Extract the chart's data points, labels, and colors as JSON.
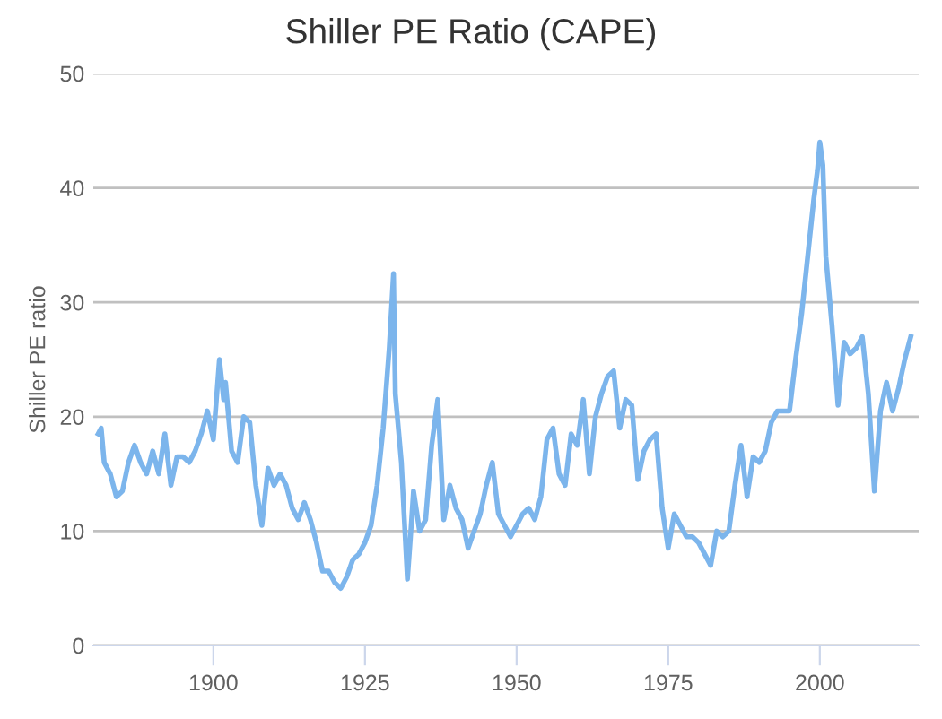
{
  "chart_data": {
    "type": "line",
    "title": "Shiller PE Ratio (CAPE)",
    "ylabel": "Shiller PE ratio",
    "xlim": [
      1880.2,
      2016.3
    ],
    "xticks": [
      1900,
      1925,
      1950,
      1975,
      2000
    ],
    "ylim": [
      0,
      50
    ],
    "yticks": [
      0,
      10,
      20,
      30,
      40,
      50
    ],
    "grid": "y",
    "marker": "none",
    "line_style": "solid",
    "series": [
      {
        "color": "#7cb5ec",
        "x": [
          1881,
          1881.5,
          1882,
          1883,
          1884,
          1885,
          1886,
          1887,
          1888,
          1889,
          1890,
          1891,
          1892,
          1893,
          1894,
          1895,
          1896,
          1897,
          1898,
          1899,
          1900,
          1901,
          1901.7,
          1902,
          1903,
          1904,
          1905,
          1906,
          1907,
          1908,
          1909,
          1910,
          1911,
          1912,
          1913,
          1914,
          1915,
          1916,
          1917,
          1918,
          1919,
          1920,
          1921,
          1922,
          1923,
          1924,
          1925,
          1926,
          1927,
          1928,
          1929,
          1929.7,
          1930,
          1931,
          1932,
          1932.5,
          1933,
          1934,
          1935,
          1936,
          1937,
          1938,
          1939,
          1940,
          1941,
          1942,
          1943,
          1944,
          1945,
          1946,
          1947,
          1948,
          1949,
          1950,
          1951,
          1952,
          1953,
          1954,
          1955,
          1956,
          1957,
          1958,
          1959,
          1960,
          1961,
          1962,
          1963,
          1964,
          1965,
          1966,
          1967,
          1968,
          1969,
          1970,
          1971,
          1972,
          1973,
          1974,
          1975,
          1976,
          1977,
          1978,
          1979,
          1980,
          1981,
          1982,
          1983,
          1984,
          1985,
          1986,
          1987,
          1988,
          1989,
          1990,
          1991,
          1992,
          1993,
          1994,
          1995,
          1996,
          1997,
          1998,
          1999,
          1999.6,
          2000,
          2000.5,
          2001,
          2002,
          2003,
          2004,
          2005,
          2006,
          2007,
          2008,
          2009,
          2010,
          2011,
          2012,
          2013,
          2014,
          2015
        ],
        "values": [
          18.5,
          19,
          16,
          15,
          13,
          13.5,
          16,
          17.5,
          16,
          15,
          17,
          15,
          18.5,
          14,
          16.5,
          16.5,
          16,
          17,
          18.5,
          20.5,
          18,
          25,
          21.5,
          23,
          17,
          16,
          20,
          19.5,
          14,
          10.5,
          15.5,
          14,
          15,
          14,
          12,
          11,
          12.5,
          11,
          9,
          6.5,
          6.5,
          5.5,
          5,
          6,
          7.5,
          8,
          9,
          10.5,
          14,
          19,
          26,
          32.5,
          22,
          16,
          5.8,
          9.5,
          13.5,
          10,
          11,
          17.5,
          21.5,
          11,
          14,
          12,
          11,
          8.5,
          10,
          11.5,
          14,
          16,
          11.5,
          10.5,
          9.5,
          10.5,
          11.5,
          12,
          11,
          13,
          18,
          19,
          15,
          14,
          18.5,
          17.5,
          21.5,
          15,
          20,
          22,
          23.5,
          24,
          19,
          21.5,
          21,
          14.5,
          17,
          18,
          18.5,
          12,
          8.5,
          11.5,
          10.5,
          9.5,
          9.5,
          9,
          8,
          7,
          10,
          9.5,
          10,
          14,
          17.5,
          13,
          16.5,
          16,
          17,
          19.5,
          20.5,
          20.5,
          20.5,
          25,
          29,
          34,
          39,
          41.5,
          44,
          42,
          34,
          28,
          21,
          26.5,
          25.5,
          26,
          27,
          22,
          13.5,
          20.5,
          23,
          20.5,
          22.5,
          25,
          27
        ]
      }
    ]
  }
}
